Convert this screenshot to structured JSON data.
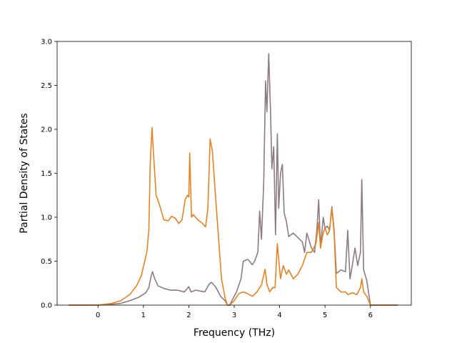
{
  "chart_data": {
    "type": "line",
    "xlabel": "Frequency (THz)",
    "ylabel": "Partial Density of States",
    "xlim": [
      -0.9,
      6.9
    ],
    "ylim": [
      0.0,
      3.0
    ],
    "x_ticks": [
      "0",
      "1",
      "2",
      "3",
      "4",
      "5",
      "6"
    ],
    "x_tick_values": [
      0,
      1,
      2,
      3,
      4,
      5,
      6
    ],
    "y_ticks": [
      "0.0",
      "0.5",
      "1.0",
      "1.5",
      "2.0",
      "2.5",
      "3.0"
    ],
    "y_tick_values": [
      0,
      0.5,
      1,
      1.5,
      2,
      2.5,
      3
    ],
    "grid": false,
    "legend": "none",
    "series": [
      {
        "color": "#8c7b82",
        "points": [
          [
            -0.65,
            0.0
          ],
          [
            0.0,
            0.0
          ],
          [
            0.3,
            0.01
          ],
          [
            0.5,
            0.02
          ],
          [
            0.7,
            0.05
          ],
          [
            0.9,
            0.09
          ],
          [
            1.05,
            0.14
          ],
          [
            1.12,
            0.2
          ],
          [
            1.17,
            0.33
          ],
          [
            1.2,
            0.38
          ],
          [
            1.25,
            0.3
          ],
          [
            1.32,
            0.22
          ],
          [
            1.45,
            0.19
          ],
          [
            1.6,
            0.17
          ],
          [
            1.75,
            0.17
          ],
          [
            1.9,
            0.15
          ],
          [
            1.95,
            0.18
          ],
          [
            2.0,
            0.21
          ],
          [
            2.05,
            0.15
          ],
          [
            2.15,
            0.17
          ],
          [
            2.25,
            0.16
          ],
          [
            2.35,
            0.15
          ],
          [
            2.45,
            0.24
          ],
          [
            2.5,
            0.26
          ],
          [
            2.6,
            0.2
          ],
          [
            2.7,
            0.1
          ],
          [
            2.8,
            0.05
          ],
          [
            2.85,
            0.0
          ],
          [
            2.9,
            0.0
          ],
          [
            2.95,
            0.05
          ],
          [
            3.05,
            0.15
          ],
          [
            3.15,
            0.3
          ],
          [
            3.2,
            0.5
          ],
          [
            3.3,
            0.52
          ],
          [
            3.4,
            0.46
          ],
          [
            3.45,
            0.5
          ],
          [
            3.52,
            0.6
          ],
          [
            3.56,
            1.07
          ],
          [
            3.6,
            0.75
          ],
          [
            3.65,
            1.4
          ],
          [
            3.69,
            2.55
          ],
          [
            3.72,
            2.2
          ],
          [
            3.76,
            2.86
          ],
          [
            3.8,
            2.2
          ],
          [
            3.83,
            1.55
          ],
          [
            3.87,
            1.8
          ],
          [
            3.91,
            0.8
          ],
          [
            3.95,
            1.95
          ],
          [
            3.98,
            1.1
          ],
          [
            4.02,
            1.5
          ],
          [
            4.06,
            1.6
          ],
          [
            4.1,
            1.05
          ],
          [
            4.15,
            0.95
          ],
          [
            4.2,
            0.78
          ],
          [
            4.3,
            0.82
          ],
          [
            4.4,
            0.77
          ],
          [
            4.5,
            0.72
          ],
          [
            4.55,
            0.6
          ],
          [
            4.6,
            0.82
          ],
          [
            4.7,
            0.65
          ],
          [
            4.77,
            0.6
          ],
          [
            4.82,
            0.85
          ],
          [
            4.86,
            1.2
          ],
          [
            4.9,
            0.65
          ],
          [
            4.96,
            1.0
          ],
          [
            5.0,
            0.87
          ],
          [
            5.05,
            0.9
          ],
          [
            5.1,
            0.85
          ],
          [
            5.15,
            1.12
          ],
          [
            5.2,
            0.85
          ],
          [
            5.25,
            0.36
          ],
          [
            5.35,
            0.4
          ],
          [
            5.45,
            0.38
          ],
          [
            5.5,
            0.85
          ],
          [
            5.55,
            0.3
          ],
          [
            5.6,
            0.45
          ],
          [
            5.66,
            0.65
          ],
          [
            5.72,
            0.45
          ],
          [
            5.78,
            0.6
          ],
          [
            5.81,
            1.43
          ],
          [
            5.85,
            0.4
          ],
          [
            5.92,
            0.28
          ],
          [
            6.0,
            0.0
          ],
          [
            6.1,
            0.0
          ],
          [
            6.6,
            0.0
          ]
        ]
      },
      {
        "color": "#e8821e",
        "points": [
          [
            -0.65,
            0.0
          ],
          [
            0.0,
            0.0
          ],
          [
            0.3,
            0.02
          ],
          [
            0.5,
            0.05
          ],
          [
            0.7,
            0.12
          ],
          [
            0.85,
            0.22
          ],
          [
            0.95,
            0.33
          ],
          [
            1.03,
            0.5
          ],
          [
            1.08,
            0.62
          ],
          [
            1.12,
            0.85
          ],
          [
            1.15,
            1.6
          ],
          [
            1.19,
            2.02
          ],
          [
            1.22,
            1.75
          ],
          [
            1.28,
            1.25
          ],
          [
            1.35,
            1.15
          ],
          [
            1.45,
            0.97
          ],
          [
            1.55,
            0.96
          ],
          [
            1.62,
            1.01
          ],
          [
            1.7,
            0.99
          ],
          [
            1.78,
            0.93
          ],
          [
            1.85,
            0.97
          ],
          [
            1.92,
            1.2
          ],
          [
            1.97,
            1.25
          ],
          [
            2.0,
            1.23
          ],
          [
            2.02,
            1.73
          ],
          [
            2.06,
            1.0
          ],
          [
            2.1,
            1.03
          ],
          [
            2.2,
            0.97
          ],
          [
            2.3,
            0.93
          ],
          [
            2.37,
            0.89
          ],
          [
            2.42,
            1.1
          ],
          [
            2.47,
            1.89
          ],
          [
            2.52,
            1.75
          ],
          [
            2.58,
            1.3
          ],
          [
            2.65,
            0.8
          ],
          [
            2.72,
            0.3
          ],
          [
            2.8,
            0.08
          ],
          [
            2.85,
            0.0
          ],
          [
            2.9,
            0.0
          ],
          [
            3.0,
            0.05
          ],
          [
            3.1,
            0.13
          ],
          [
            3.2,
            0.15
          ],
          [
            3.3,
            0.13
          ],
          [
            3.4,
            0.1
          ],
          [
            3.5,
            0.15
          ],
          [
            3.6,
            0.23
          ],
          [
            3.68,
            0.41
          ],
          [
            3.72,
            0.24
          ],
          [
            3.78,
            0.15
          ],
          [
            3.85,
            0.2
          ],
          [
            3.9,
            0.2
          ],
          [
            3.95,
            0.7
          ],
          [
            3.98,
            0.52
          ],
          [
            4.02,
            0.3
          ],
          [
            4.08,
            0.45
          ],
          [
            4.15,
            0.35
          ],
          [
            4.2,
            0.4
          ],
          [
            4.3,
            0.3
          ],
          [
            4.4,
            0.35
          ],
          [
            4.5,
            0.45
          ],
          [
            4.6,
            0.6
          ],
          [
            4.7,
            0.6
          ],
          [
            4.8,
            0.7
          ],
          [
            4.86,
            0.94
          ],
          [
            4.9,
            0.65
          ],
          [
            4.96,
            0.82
          ],
          [
            5.0,
            0.88
          ],
          [
            5.05,
            0.8
          ],
          [
            5.1,
            0.85
          ],
          [
            5.15,
            1.1
          ],
          [
            5.2,
            0.82
          ],
          [
            5.25,
            0.2
          ],
          [
            5.35,
            0.15
          ],
          [
            5.45,
            0.15
          ],
          [
            5.5,
            0.12
          ],
          [
            5.6,
            0.14
          ],
          [
            5.7,
            0.12
          ],
          [
            5.78,
            0.2
          ],
          [
            5.81,
            0.3
          ],
          [
            5.85,
            0.15
          ],
          [
            5.92,
            0.1
          ],
          [
            6.0,
            0.0
          ],
          [
            6.1,
            0.0
          ],
          [
            6.6,
            0.0
          ]
        ]
      }
    ]
  }
}
